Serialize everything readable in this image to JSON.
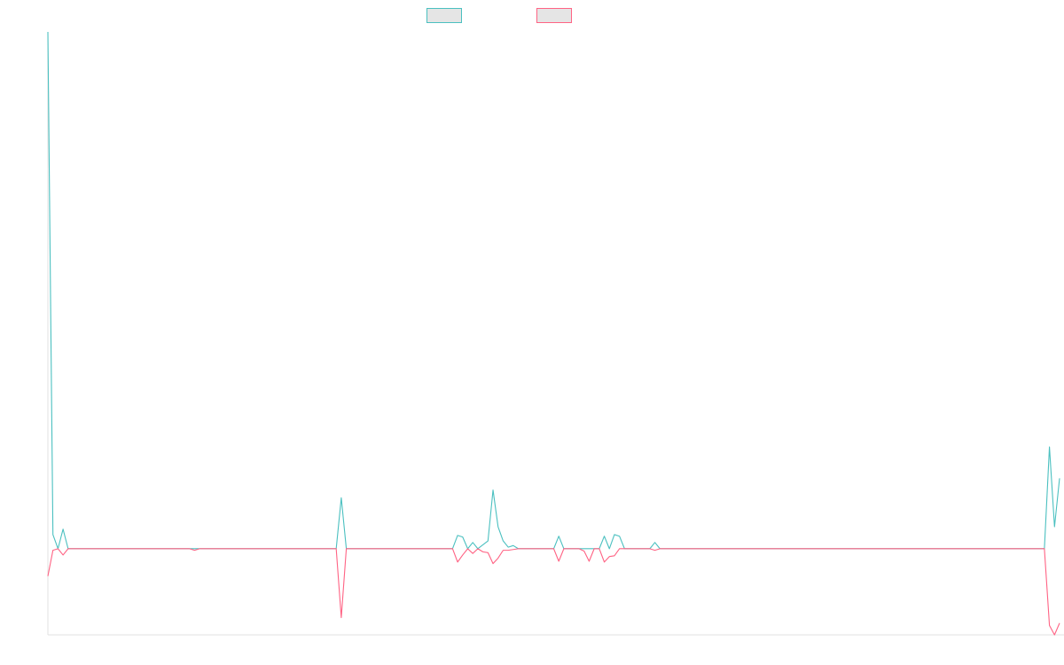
{
  "chart_data": {
    "type": "line",
    "title": "",
    "xlabel": "",
    "ylabel": "",
    "grid": false,
    "legend_position": "top",
    "ylim": [
      -11,
      66
    ],
    "x_count": 200,
    "series": [
      {
        "legend_label": "",
        "color": "#4bc0c0",
        "legend_fill": "#e5e5e5",
        "points": [
          [
            0,
            66
          ],
          [
            1,
            1.8
          ],
          [
            2,
            0
          ],
          [
            3,
            2.5
          ],
          [
            4,
            0
          ],
          [
            57,
            0
          ],
          [
            58,
            6.5
          ],
          [
            59,
            0
          ],
          [
            80,
            0
          ],
          [
            81,
            1.7
          ],
          [
            82,
            1.5
          ],
          [
            83,
            0
          ],
          [
            84,
            0.8
          ],
          [
            85,
            0
          ],
          [
            86,
            0.5
          ],
          [
            87,
            1.0
          ],
          [
            88,
            7.5
          ],
          [
            89,
            2.8
          ],
          [
            90,
            1.0
          ],
          [
            91,
            0.2
          ],
          [
            92,
            0.4
          ],
          [
            93,
            0
          ],
          [
            100,
            0
          ],
          [
            101,
            1.6
          ],
          [
            102,
            0
          ],
          [
            109,
            0
          ],
          [
            110,
            1.6
          ],
          [
            111,
            0
          ],
          [
            112,
            1.8
          ],
          [
            113,
            1.6
          ],
          [
            114,
            0
          ],
          [
            119,
            0
          ],
          [
            120,
            0.8
          ],
          [
            121,
            0
          ],
          [
            197,
            0
          ],
          [
            198,
            13
          ],
          [
            199,
            2.8
          ],
          [
            200,
            9
          ]
        ]
      },
      {
        "legend_label": "",
        "color": "#ff6384",
        "legend_fill": "#e5e5e5",
        "points": [
          [
            0,
            -3.5
          ],
          [
            1,
            -0.2
          ],
          [
            2,
            0
          ],
          [
            3,
            -0.8
          ],
          [
            4,
            0
          ],
          [
            28,
            0
          ],
          [
            29,
            -0.2
          ],
          [
            30,
            0
          ],
          [
            57,
            0
          ],
          [
            58,
            -8.8
          ],
          [
            59,
            0
          ],
          [
            80,
            0
          ],
          [
            81,
            -1.7
          ],
          [
            82,
            -0.8
          ],
          [
            83,
            0
          ],
          [
            84,
            -0.6
          ],
          [
            85,
            0
          ],
          [
            86,
            -0.4
          ],
          [
            87,
            -0.5
          ],
          [
            88,
            -1.9
          ],
          [
            89,
            -1.2
          ],
          [
            90,
            -0.2
          ],
          [
            91,
            -0.2
          ],
          [
            92,
            -0.1
          ],
          [
            93,
            0
          ],
          [
            100,
            0
          ],
          [
            101,
            -1.6
          ],
          [
            102,
            0
          ],
          [
            105,
            0
          ],
          [
            106,
            -0.3
          ],
          [
            107,
            -1.6
          ],
          [
            108,
            0
          ],
          [
            109,
            0
          ],
          [
            110,
            -1.7
          ],
          [
            111,
            -1.0
          ],
          [
            112,
            -0.9
          ],
          [
            113,
            0
          ],
          [
            119,
            0
          ],
          [
            120,
            -0.2
          ],
          [
            121,
            0
          ],
          [
            197,
            0
          ],
          [
            198,
            -9.8
          ],
          [
            199,
            -11
          ],
          [
            200,
            -9.5
          ]
        ]
      }
    ]
  }
}
